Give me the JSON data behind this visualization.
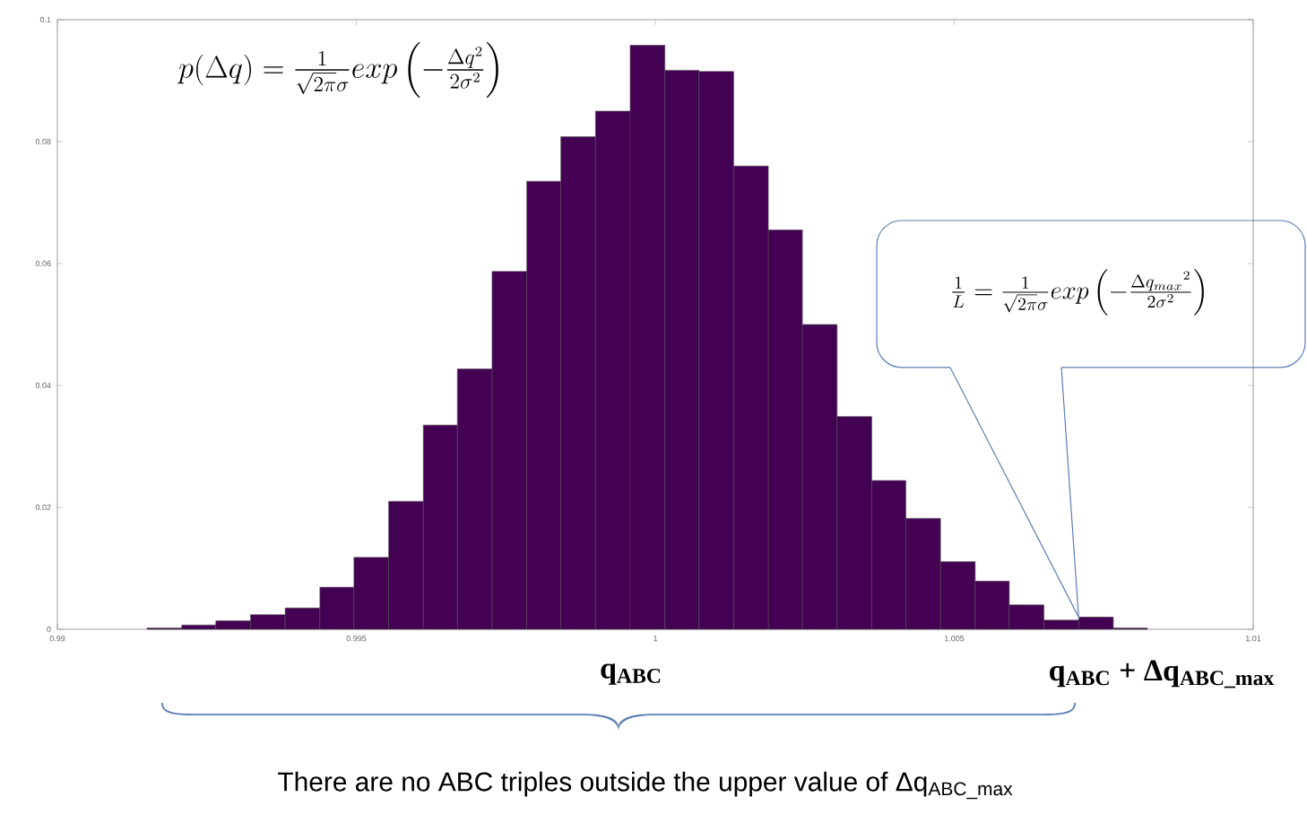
{
  "chart_data": {
    "type": "histogram",
    "bins": [
      0.9915,
      0.99208,
      0.99265,
      0.99323,
      0.99381,
      0.99439,
      0.99496,
      0.99554,
      0.99612,
      0.99669,
      0.99727,
      0.99785,
      0.99842,
      0.999,
      0.99958,
      1.00016,
      1.00073,
      1.00131,
      1.00189,
      1.00246,
      1.00304,
      1.00362,
      1.00419,
      1.00477,
      1.00535,
      1.00592,
      1.0065,
      1.00708,
      1.00766,
      1.00823
    ],
    "values": [
      0.0002,
      0.0007,
      0.0014,
      0.0024,
      0.0035,
      0.0069,
      0.0118,
      0.021,
      0.0335,
      0.0427,
      0.0587,
      0.0735,
      0.0808,
      0.085,
      0.0958,
      0.0917,
      0.0915,
      0.076,
      0.0655,
      0.05,
      0.0349,
      0.0244,
      0.0182,
      0.0111,
      0.0079,
      0.004,
      0.0015,
      0.002,
      0.0002
    ],
    "color": "#440154",
    "xlim": [
      0.99,
      1.01
    ],
    "ylim": [
      0,
      0.1
    ],
    "xticks": [
      0.99,
      0.995,
      1,
      1.005,
      1.01
    ],
    "yticks": [
      0,
      0.02,
      0.04,
      0.06,
      0.08,
      0.1
    ],
    "grid": false,
    "annotations": [
      "p(\\Delta q) = \\frac{1}{\\sqrt{2\\pi}\\sigma} exp\\left(-\\frac{\\Delta q^2}{2\\sigma^2}\\right)",
      "\\frac{1}{L} = \\frac{1}{\\sqrt{2\\pi}\\sigma} exp\\left(-\\frac{{\\Delta q_{max}}^2}{2\\sigma^2}\\right)",
      "q$_{ABC}$",
      "q$_{ABC}$ + Δq$_{ABC_max}$",
      "There are no ABC triples outside the upper value of Δq$_{ABC_max}$"
    ]
  }
}
